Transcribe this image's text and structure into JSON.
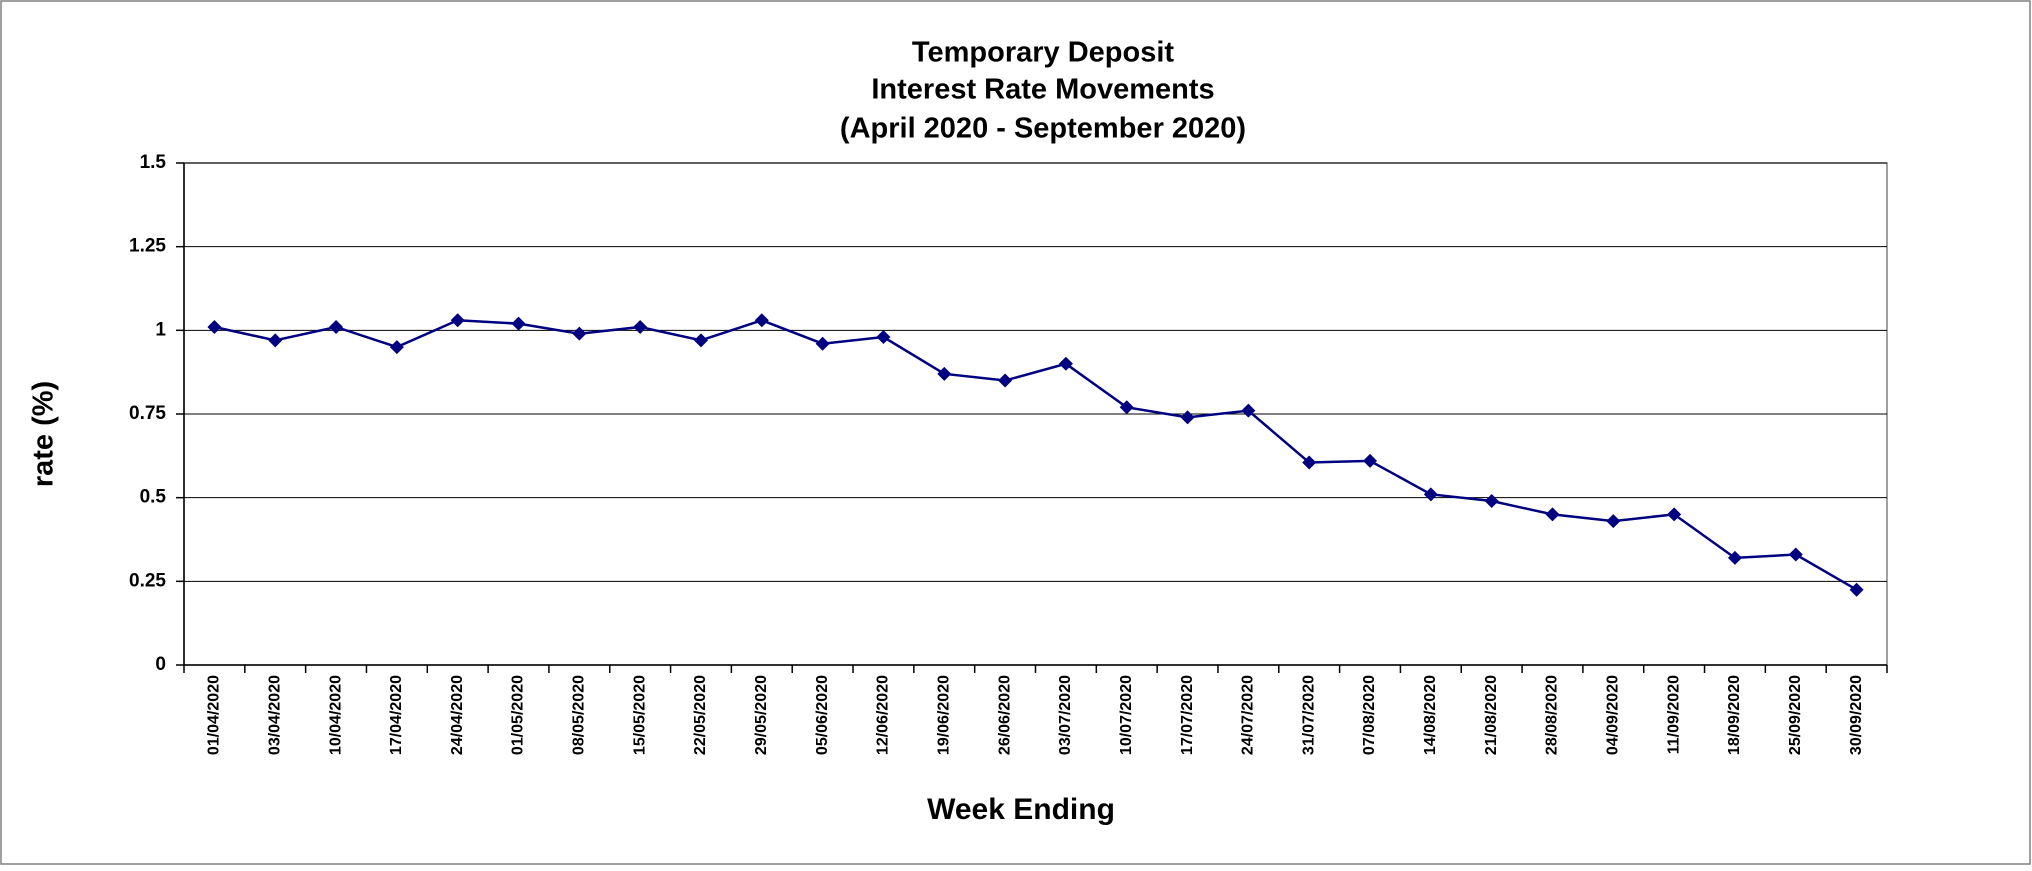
{
  "chart_data": {
    "type": "line",
    "title": [
      "Temporary Deposit",
      "Interest Rate Movements",
      "(April 2020 - September 2020)"
    ],
    "x_label": "Week Ending",
    "y_label": "rate (%)",
    "categories": [
      "01/04/2020",
      "03/04/2020",
      "10/04/2020",
      "17/04/2020",
      "24/04/2020",
      "01/05/2020",
      "08/05/2020",
      "15/05/2020",
      "22/05/2020",
      "29/05/2020",
      "05/06/2020",
      "12/06/2020",
      "19/06/2020",
      "26/06/2020",
      "03/07/2020",
      "10/07/2020",
      "17/07/2020",
      "24/07/2020",
      "31/07/2020",
      "07/08/2020",
      "14/08/2020",
      "21/08/2020",
      "28/08/2020",
      "04/09/2020",
      "11/09/2020",
      "18/09/2020",
      "25/09/2020",
      "30/09/2020"
    ],
    "series": [
      {
        "name": "rate",
        "color": "#000080",
        "values": [
          1.01,
          0.97,
          1.01,
          0.95,
          1.03,
          1.02,
          0.99,
          1.01,
          0.97,
          1.03,
          0.96,
          0.98,
          0.87,
          0.85,
          0.9,
          0.77,
          0.74,
          0.76,
          0.605,
          0.61,
          0.51,
          0.49,
          0.45,
          0.43,
          0.45,
          0.32,
          0.33,
          0.225
        ]
      }
    ],
    "ylim": [
      0,
      1.5
    ],
    "yticks": [
      0,
      0.25,
      0.5,
      0.75,
      1,
      1.25,
      1.5
    ],
    "grid": true
  }
}
